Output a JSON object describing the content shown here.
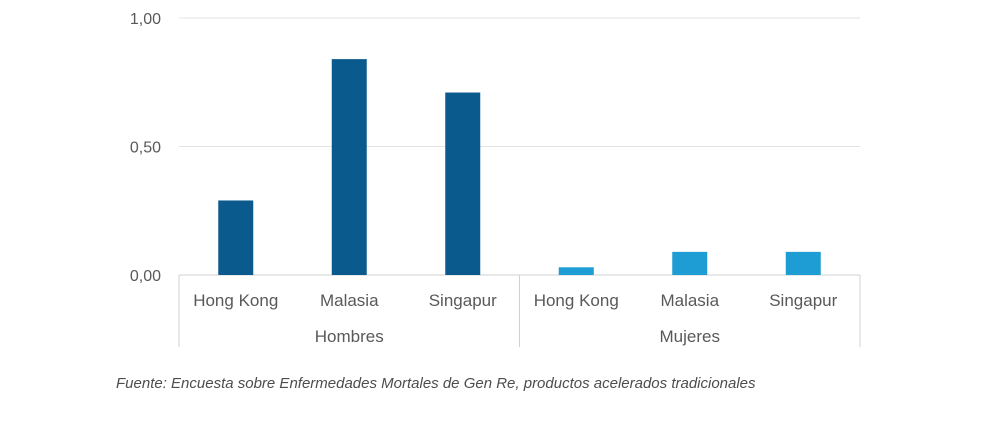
{
  "chart_data": {
    "type": "bar",
    "groups": [
      {
        "label": "Hombres",
        "categories": [
          "Hong Kong",
          "Malasia",
          "Singapur"
        ],
        "values": [
          0.29,
          0.84,
          0.71
        ],
        "color": "#0b5a8d"
      },
      {
        "label": "Mujeres",
        "categories": [
          "Hong Kong",
          "Malasia",
          "Singapur"
        ],
        "values": [
          0.03,
          0.09,
          0.09
        ],
        "color": "#1e9cd4"
      }
    ],
    "y_ticks": [
      "1,00",
      "0,50",
      "0,00"
    ],
    "ylim": [
      0,
      1
    ],
    "grid": true,
    "title": "",
    "xlabel": "",
    "ylabel": ""
  },
  "source_note": "Fuente: Encuesta sobre Enfermedades Mortales de Gen Re, productos acelerados tradicionales"
}
